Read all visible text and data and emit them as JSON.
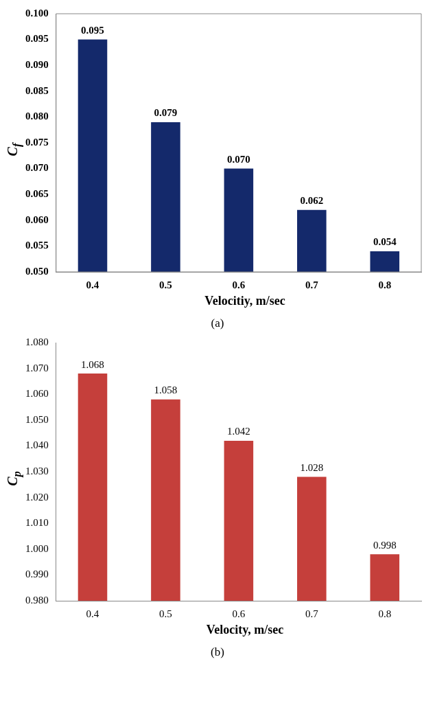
{
  "chart_data": [
    {
      "type": "bar",
      "categories": [
        "0.4",
        "0.5",
        "0.6",
        "0.7",
        "0.8"
      ],
      "values": [
        0.095,
        0.079,
        0.07,
        0.062,
        0.054
      ],
      "value_labels": [
        "0.095",
        "0.079",
        "0.070",
        "0.062",
        "0.054"
      ],
      "color": "#14296b",
      "ylim": [
        0.05,
        0.1
      ],
      "yticks": [
        {
          "value": 0.05,
          "label": "0.050"
        },
        {
          "value": 0.055,
          "label": "0.055"
        },
        {
          "value": 0.06,
          "label": "0.060"
        },
        {
          "value": 0.065,
          "label": "0.065"
        },
        {
          "value": 0.07,
          "label": "0.070"
        },
        {
          "value": 0.075,
          "label": "0.075"
        },
        {
          "value": 0.08,
          "label": "0.080"
        },
        {
          "value": 0.085,
          "label": "0.085"
        },
        {
          "value": 0.09,
          "label": "0.090"
        },
        {
          "value": 0.095,
          "label": "0.095"
        },
        {
          "value": 0.1,
          "label": "0.100"
        }
      ],
      "xlabel": "Velocitiy, m/sec",
      "ylabel": "C$_{f}$",
      "annotations": [
        "(a)"
      ]
    },
    {
      "type": "bar",
      "categories": [
        "0.4",
        "0.5",
        "0.6",
        "0.7",
        "0.8"
      ],
      "values": [
        1.068,
        1.058,
        1.042,
        1.028,
        0.998
      ],
      "value_labels": [
        "1.068",
        "1.058",
        "1.042",
        "1.028",
        "0.998"
      ],
      "color": "#c53f3b",
      "ylim": [
        0.98,
        1.08
      ],
      "yticks": [
        {
          "value": 0.98,
          "label": "0.980"
        },
        {
          "value": 0.99,
          "label": "0.990"
        },
        {
          "value": 1.0,
          "label": "1.000"
        },
        {
          "value": 1.01,
          "label": "1.010"
        },
        {
          "value": 1.02,
          "label": "1.020"
        },
        {
          "value": 1.03,
          "label": "1.030"
        },
        {
          "value": 1.04,
          "label": "1.040"
        },
        {
          "value": 1.05,
          "label": "1.050"
        },
        {
          "value": 1.06,
          "label": "1.060"
        },
        {
          "value": 1.07,
          "label": "1.070"
        },
        {
          "value": 1.08,
          "label": "1.080"
        }
      ],
      "xlabel": "Velocity, m/sec",
      "ylabel": "C$_{p}$",
      "annotations": [
        "(b)"
      ]
    }
  ]
}
